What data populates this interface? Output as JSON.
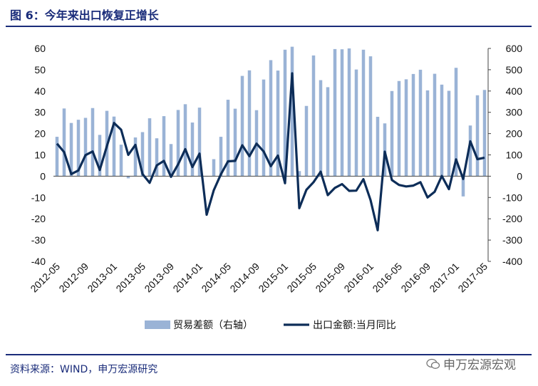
{
  "header": {
    "title": "图 6：今年来出口恢复正增长"
  },
  "footer": {
    "source": "资料来源：WIND，申万宏源研究",
    "watermark": "申万宏源宏观"
  },
  "colors": {
    "accent": "#1a2c7a",
    "bar": "#9ab3d6",
    "line": "#0d2d58"
  },
  "chart_data": {
    "type": "bar+line",
    "title": "",
    "x": [
      "2012-05",
      "2012-06",
      "2012-07",
      "2012-08",
      "2012-09",
      "2012-10",
      "2012-11",
      "2012-12",
      "2013-01",
      "2013-02",
      "2013-03",
      "2013-04",
      "2013-05",
      "2013-06",
      "2013-07",
      "2013-08",
      "2013-09",
      "2013-10",
      "2013-11",
      "2013-12",
      "2014-01",
      "2014-02",
      "2014-03",
      "2014-04",
      "2014-05",
      "2014-06",
      "2014-07",
      "2014-08",
      "2014-09",
      "2014-10",
      "2014-11",
      "2014-12",
      "2015-01",
      "2015-02",
      "2015-03",
      "2015-04",
      "2015-05",
      "2015-06",
      "2015-07",
      "2015-08",
      "2015-09",
      "2015-10",
      "2015-11",
      "2015-12",
      "2016-01",
      "2016-02",
      "2016-03",
      "2016-04",
      "2016-05",
      "2016-06",
      "2016-07",
      "2016-08",
      "2016-09",
      "2016-10",
      "2016-11",
      "2016-12",
      "2017-01",
      "2017-02",
      "2017-03",
      "2017-04",
      "2017-05"
    ],
    "x_tick_labels": [
      "2012-05",
      "2012-09",
      "2013-01",
      "2013-05",
      "2013-09",
      "2014-01",
      "2014-05",
      "2014-09",
      "2015-01",
      "2015-05",
      "2015-09",
      "2016-01",
      "2016-05",
      "2016-09",
      "2017-01",
      "2017-05"
    ],
    "left_axis": {
      "ylim": [
        -40,
        60
      ],
      "ticks": [
        "60",
        "50",
        "40",
        "30",
        "20",
        "10",
        "0",
        "-10",
        "-20",
        "-30",
        "-40"
      ]
    },
    "right_axis": {
      "ylim": [
        -400,
        600
      ],
      "ticks": [
        "600",
        "500",
        "400",
        "300",
        "200",
        "100",
        "0",
        "-100",
        "-200",
        "-300",
        "-400"
      ]
    },
    "series": [
      {
        "name": "贸易差额（右轴）",
        "type": "bar",
        "axis": "right",
        "values": [
          185,
          318,
          250,
          265,
          274,
          320,
          194,
          307,
          280,
          148,
          -10,
          182,
          207,
          272,
          178,
          282,
          151,
          311,
          338,
          252,
          322,
          0,
          80,
          185,
          359,
          317,
          471,
          497,
          310,
          454,
          545,
          496,
          594,
          608,
          24,
          330,
          567,
          451,
          418,
          597,
          596,
          600,
          501,
          594,
          563,
          279,
          248,
          400,
          447,
          455,
          480,
          500,
          403,
          481,
          430,
          401,
          509,
          -95,
          238,
          380,
          405
        ]
      },
      {
        "name": "出口金额:当月同比",
        "type": "line",
        "axis": "left",
        "values": [
          15.3,
          11.3,
          1.0,
          2.7,
          9.9,
          11.6,
          2.9,
          14.1,
          25.0,
          21.8,
          10.0,
          14.7,
          1.0,
          -3.1,
          5.1,
          7.2,
          -0.3,
          5.6,
          12.7,
          4.3,
          10.6,
          -18.1,
          -6.6,
          0.9,
          7.0,
          7.2,
          14.5,
          9.4,
          15.3,
          11.6,
          4.7,
          9.7,
          -3.3,
          48.3,
          -15.0,
          -6.4,
          -2.8,
          2.1,
          -8.9,
          -5.5,
          -3.7,
          -6.9,
          -6.8,
          -1.4,
          -11.2,
          -25.4,
          11.5,
          -1.8,
          -4.1,
          -4.8,
          -4.4,
          -2.8,
          -10.0,
          -7.3,
          0.1,
          -6.1,
          7.9,
          -1.3,
          16.4,
          8.0,
          8.7
        ]
      }
    ],
    "legend": {
      "position": "bottom",
      "items": [
        "贸易差额（右轴）",
        "出口金额:当月同比"
      ]
    },
    "grid": false
  }
}
